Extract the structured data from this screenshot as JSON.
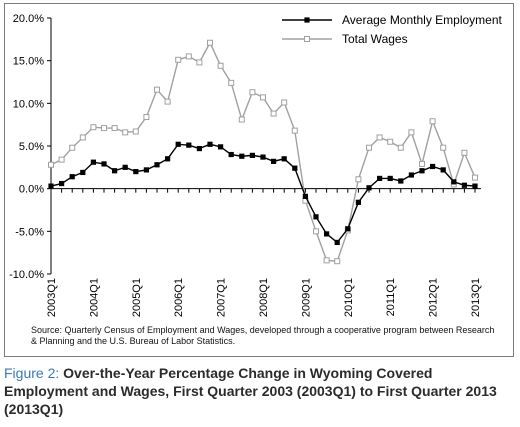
{
  "chart_data": {
    "type": "line",
    "title": "",
    "xlabel": "",
    "ylabel": "",
    "ylim": [
      -10,
      20
    ],
    "y_ticks": [
      "20.0%",
      "15.0%",
      "10.0%",
      "5.0%",
      "0.0%",
      "-5.0%",
      "-10.0%"
    ],
    "x_tick_labels": [
      "2003Q1",
      "2004Q1",
      "2005Q1",
      "2006Q1",
      "2007Q1",
      "2008Q1",
      "2009Q1",
      "2010Q1",
      "2011Q1",
      "2012Q1",
      "2013Q1"
    ],
    "x": [
      "2003Q1",
      "2003Q2",
      "2003Q3",
      "2003Q4",
      "2004Q1",
      "2004Q2",
      "2004Q3",
      "2004Q4",
      "2005Q1",
      "2005Q2",
      "2005Q3",
      "2005Q4",
      "2006Q1",
      "2006Q2",
      "2006Q3",
      "2006Q4",
      "2007Q1",
      "2007Q2",
      "2007Q3",
      "2007Q4",
      "2008Q1",
      "2008Q2",
      "2008Q3",
      "2008Q4",
      "2009Q1",
      "2009Q2",
      "2009Q3",
      "2009Q4",
      "2010Q1",
      "2010Q2",
      "2010Q3",
      "2010Q4",
      "2011Q1",
      "2011Q2",
      "2011Q3",
      "2011Q4",
      "2012Q1",
      "2012Q2",
      "2012Q3",
      "2012Q4",
      "2013Q1"
    ],
    "series": [
      {
        "name": "Average Monthly Employment",
        "color": "#000000",
        "marker": "filled-square",
        "values": [
          0.3,
          0.6,
          1.4,
          1.9,
          3.1,
          2.9,
          2.1,
          2.5,
          2.0,
          2.2,
          2.8,
          3.5,
          5.2,
          5.1,
          4.7,
          5.2,
          4.9,
          4.0,
          3.8,
          3.9,
          3.7,
          3.2,
          3.5,
          2.4,
          -0.9,
          -3.3,
          -5.3,
          -6.3,
          -4.7,
          -1.6,
          0.1,
          1.2,
          1.2,
          0.9,
          1.6,
          2.1,
          2.6,
          2.2,
          0.8,
          0.4,
          0.3
        ]
      },
      {
        "name": "Total Wages",
        "color": "#a0a0a0",
        "marker": "open-square",
        "values": [
          2.8,
          3.4,
          4.8,
          6.0,
          7.2,
          7.1,
          7.1,
          6.6,
          6.7,
          8.4,
          11.6,
          10.2,
          15.1,
          15.5,
          14.8,
          17.1,
          14.4,
          12.4,
          8.1,
          11.3,
          10.7,
          8.8,
          10.1,
          6.8,
          -1.4,
          -5.0,
          -8.4,
          -8.5,
          -4.9,
          1.1,
          4.8,
          6.0,
          5.5,
          4.8,
          6.6,
          2.9,
          7.9,
          4.8,
          0.5,
          4.2,
          1.3
        ]
      }
    ],
    "legend_position": "top-right",
    "grid": false,
    "source": "Source: Quarterly Census of Employment and Wages, developed through a cooperative program between Research & Planning and the U.S. Bureau of Labor Statistics."
  },
  "caption": {
    "label": "Figure 2:",
    "text": "Over-the-Year Percentage Change in Wyoming Covered Employment and Wages, First Quarter 2003 (2003Q1) to First Quarter 2013 (2013Q1)"
  },
  "colors": {
    "caption_label": "#3b78b8",
    "axis": "#000000",
    "frame": "#7a7a7a"
  }
}
